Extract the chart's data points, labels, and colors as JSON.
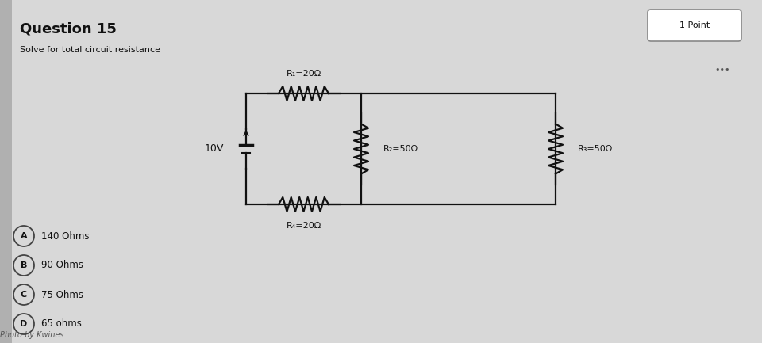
{
  "title": "Question 15",
  "subtitle": "Solve for total circuit resistance",
  "point_label": "1 Point",
  "photo_credit": "Photo by Kwines",
  "voltage": "10V",
  "resistors": {
    "R1": "R₁=20Ω",
    "R2": "R₂=50Ω",
    "R3": "R₃=50Ω",
    "R4": "R₄=20Ω"
  },
  "choices": [
    {
      "label": "A",
      "text": "140 Ohms"
    },
    {
      "label": "B",
      "text": "90 Ohms"
    },
    {
      "label": "C",
      "text": "75 Ohms"
    },
    {
      "label": "D",
      "text": "65 ohms"
    }
  ],
  "bg_color": "#b0b0b0",
  "panel_color": "#d8d8d8",
  "text_color": "#111111",
  "circuit_color": "#111111",
  "dots_color": "#555555"
}
